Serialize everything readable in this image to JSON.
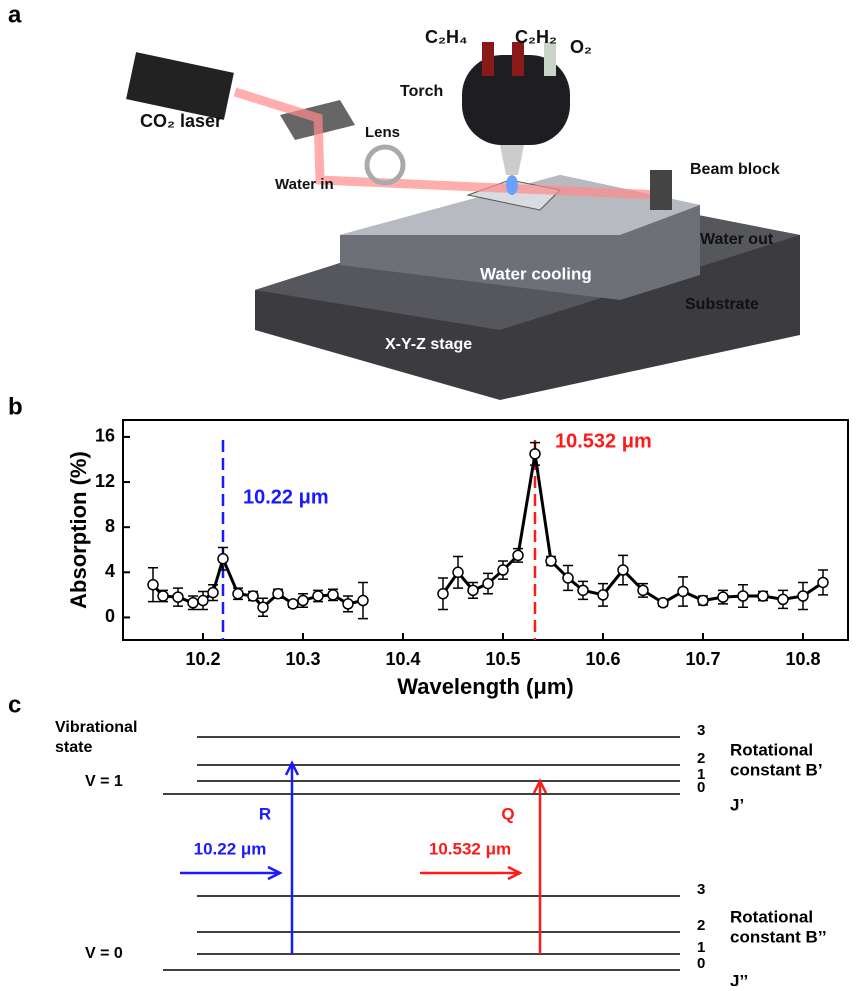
{
  "panel_a": {
    "label": "a",
    "texts": [
      "C₂H₄",
      "C₂H₂",
      "O₂",
      "Torch",
      "CO₂ laser",
      "Lens",
      "Water in",
      "Beam block",
      "Water out",
      "Water cooling",
      "Substrate",
      "X-Y-Z stage"
    ]
  },
  "chart_data": {
    "type": "line",
    "label": "b",
    "xlabel": "Wavelength (μm)",
    "ylabel": "Absorption (%)",
    "x": [
      10.15,
      10.16,
      10.175,
      10.19,
      10.2,
      10.21,
      10.22,
      10.235,
      10.25,
      10.26,
      10.275,
      10.29,
      10.3,
      10.315,
      10.33,
      10.345,
      10.36,
      10.4,
      10.44,
      10.455,
      10.47,
      10.485,
      10.5,
      10.515,
      10.532,
      10.548,
      10.565,
      10.58,
      10.6,
      10.62,
      10.64,
      10.66,
      10.68,
      10.7,
      10.72,
      10.74,
      10.76,
      10.78,
      10.8,
      10.82
    ],
    "values": [
      2.9,
      1.9,
      1.8,
      1.3,
      1.5,
      2.2,
      5.2,
      2.1,
      1.9,
      0.9,
      2.1,
      1.2,
      1.5,
      1.9,
      2.0,
      1.2,
      1.5,
      null,
      2.1,
      4.0,
      2.4,
      3.0,
      4.2,
      5.5,
      14.5,
      5.0,
      3.5,
      2.4,
      2.0,
      4.2,
      2.4,
      1.3,
      2.3,
      1.5,
      1.8,
      1.9,
      1.9,
      1.6,
      1.9,
      3.1
    ],
    "errors": [
      1.5,
      0.5,
      0.8,
      0.6,
      0.8,
      0.7,
      1.0,
      0.5,
      0.4,
      0.8,
      0.4,
      0.3,
      0.6,
      0.5,
      0.5,
      0.7,
      1.6,
      null,
      1.4,
      1.4,
      0.7,
      0.9,
      0.8,
      0.6,
      1.0,
      0.4,
      1.1,
      0.8,
      1.0,
      1.3,
      0.6,
      0.3,
      1.3,
      0.4,
      0.6,
      1.0,
      0.4,
      0.8,
      1.2,
      1.1
    ],
    "color": "#000000",
    "xlim": [
      10.12,
      10.845
    ],
    "xticks": [
      10.2,
      10.3,
      10.4,
      10.5,
      10.6,
      10.7,
      10.8
    ],
    "ylim": [
      -2,
      17.5
    ],
    "yticks": [
      0,
      4,
      8,
      12,
      16
    ],
    "annotations": [
      {
        "text": "10.22 μm",
        "x": 10.22,
        "color": "#1a1aff"
      },
      {
        "text": "10.532 μm",
        "x": 10.532,
        "color": "#ff1a1a"
      }
    ]
  },
  "panel_c": {
    "label": "c",
    "vibrational_label": [
      "Vibrational",
      "state"
    ],
    "upper_state": "V = 1",
    "lower_state": "V = 0",
    "levels": [
      "3",
      "2",
      "1",
      "0"
    ],
    "upper_constant": [
      "Rotational",
      "constant B’"
    ],
    "upper_j": "J’",
    "lower_constant": [
      "Rotational",
      "constant B’’"
    ],
    "lower_j": "J’’",
    "transitions": [
      {
        "branch": "R",
        "wavelength": "10.22 μm",
        "color": "#1a1aff"
      },
      {
        "branch": "Q",
        "wavelength": "10.532 μm",
        "color": "#ff1a1a"
      }
    ]
  }
}
